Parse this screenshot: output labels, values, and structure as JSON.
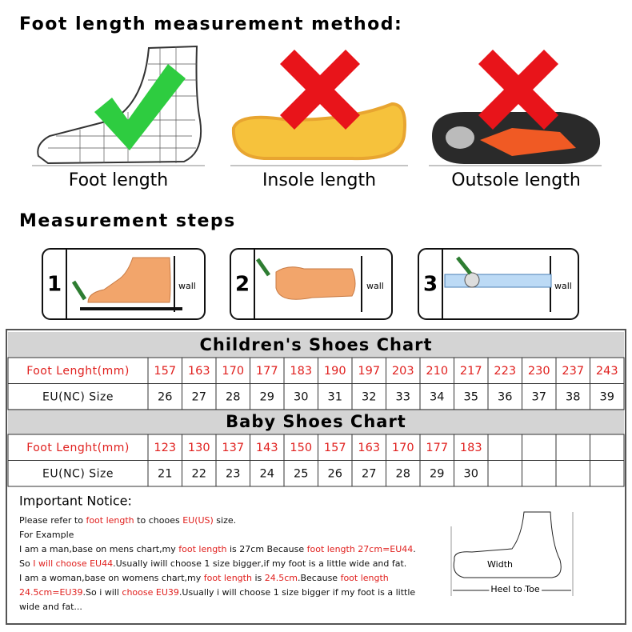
{
  "header": {
    "title": "Foot length measurement method:"
  },
  "methods": [
    {
      "label": "Foot length"
    },
    {
      "label": "Insole length"
    },
    {
      "label": "Outsole length"
    }
  ],
  "steps": {
    "title": "Measurement steps",
    "items": [
      {
        "number": 1,
        "wall": "wall"
      },
      {
        "number": 2,
        "wall": "wall"
      },
      {
        "number": 3,
        "wall": "wall"
      }
    ]
  },
  "children_chart": {
    "title": "Children's Shoes Chart",
    "row_labels": [
      "Foot Lenght(mm)",
      "EU(NC) Size"
    ],
    "foot_length": [
      157,
      163,
      170,
      177,
      183,
      190,
      197,
      203,
      210,
      217,
      223,
      230,
      237,
      243
    ],
    "eu_size": [
      26,
      27,
      28,
      29,
      30,
      31,
      32,
      33,
      34,
      35,
      36,
      37,
      38,
      39
    ]
  },
  "baby_chart": {
    "title": "Baby Shoes Chart",
    "row_labels": [
      "Foot Lenght(mm)",
      "EU(NC) Size"
    ],
    "foot_length": [
      123,
      130,
      137,
      143,
      150,
      157,
      163,
      170,
      177,
      183
    ],
    "eu_size": [
      21,
      22,
      23,
      24,
      25,
      26,
      27,
      28,
      29,
      30
    ]
  },
  "notice": {
    "title": "Important Notice:",
    "lines": [
      [
        {
          "text": "Please refer to "
        },
        {
          "text": "foot length",
          "highlight": true
        },
        {
          "text": " to chooes "
        },
        {
          "text": "EU(US)",
          "highlight": true
        },
        {
          "text": " size."
        }
      ],
      [
        {
          "text": "For Example"
        }
      ],
      [
        {
          "text": "I am a man,base on "
        },
        {
          "text": "mens chart"
        },
        {
          "text": ",my "
        },
        {
          "text": "foot length",
          "highlight": true
        },
        {
          "text": " is 27cm Because "
        },
        {
          "text": "foot length 27cm=EU44",
          "highlight": true
        },
        {
          "text": "."
        }
      ],
      [
        {
          "text": "So "
        },
        {
          "text": "I will choose EU44",
          "highlight": true
        },
        {
          "text": ".Usually iwill choose 1 size bigger,if my foot is a little wide and fat."
        }
      ],
      [
        {
          "text": "I am a woman,base on "
        },
        {
          "text": "womens chart"
        },
        {
          "text": ",my "
        },
        {
          "text": "foot length",
          "highlight": true
        },
        {
          "text": " is "
        },
        {
          "text": "24.5cm",
          "highlight": true
        },
        {
          "text": ".Because "
        },
        {
          "text": "foot length",
          "highlight": true
        }
      ],
      [
        {
          "text": "24.5cm=EU39",
          "highlight": true
        },
        {
          "text": ".So i will "
        },
        {
          "text": "choose EU39",
          "highlight": true
        },
        {
          "text": ".Usually i will choose 1 size bigger if my foot is a little"
        }
      ],
      [
        {
          "text": "wide and fat..."
        }
      ]
    ],
    "diagram": {
      "width": "Width",
      "length": "Heel to Toe"
    }
  }
}
